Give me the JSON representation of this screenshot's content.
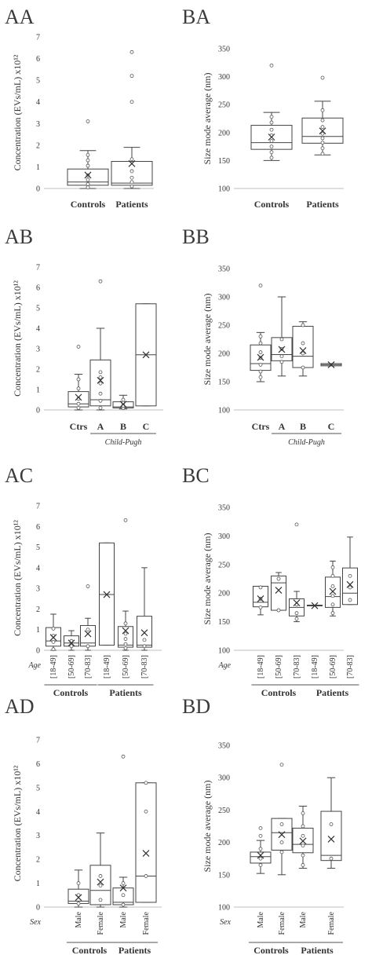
{
  "chart_data": [
    {
      "panel": "AA",
      "type": "box",
      "ylabel": "Concentration (EVs/mL) x10¹²",
      "ylim": [
        0,
        7
      ],
      "yticks": [
        0,
        1,
        2,
        3,
        4,
        5,
        6,
        7
      ],
      "categories": [
        "Controls",
        "Patients"
      ],
      "series": [
        {
          "category": "Controls",
          "min": 0,
          "q1": 0.15,
          "median": 0.3,
          "q3": 0.9,
          "max": 1.75,
          "mean": 0.62,
          "points": [
            0.05,
            0.2,
            0.4,
            0.6,
            1.05,
            1.3,
            1.55,
            3.1
          ]
        },
        {
          "category": "Patients",
          "min": 0,
          "q1": 0.15,
          "median": 0.25,
          "q3": 1.25,
          "max": 1.9,
          "mean": 1.15,
          "points": [
            0.1,
            0.3,
            0.5,
            0.8,
            1.35,
            4.0,
            5.2,
            6.3
          ]
        }
      ]
    },
    {
      "panel": "BA",
      "type": "box",
      "ylabel": "Size mode average (nm)",
      "ylim": [
        100,
        350
      ],
      "yticks": [
        100,
        150,
        200,
        250,
        300,
        350
      ],
      "categories": [
        "Controls",
        "Patients"
      ],
      "series": [
        {
          "category": "Controls",
          "min": 150,
          "q1": 170,
          "median": 182,
          "q3": 213,
          "max": 236,
          "mean": 192,
          "points": [
            155,
            165,
            175,
            185,
            195,
            205,
            218,
            228,
            320
          ]
        },
        {
          "category": "Patients",
          "min": 160,
          "q1": 181,
          "median": 193,
          "q3": 226,
          "max": 256,
          "mean": 203,
          "points": [
            162,
            172,
            182,
            190,
            198,
            210,
            222,
            240,
            298
          ]
        }
      ]
    },
    {
      "panel": "AB",
      "type": "box",
      "ylabel": "Concentration (EVs/mL) x10¹²",
      "ylim": [
        0,
        7
      ],
      "yticks": [
        0,
        1,
        2,
        3,
        4,
        5,
        6,
        7
      ],
      "categories": [
        "Ctrs",
        "A",
        "B",
        "C"
      ],
      "group_label": "Child-Pugh",
      "series": [
        {
          "category": "Ctrs",
          "min": 0,
          "q1": 0.15,
          "median": 0.3,
          "q3": 0.9,
          "max": 1.75,
          "mean": 0.62,
          "points": [
            0.1,
            0.3,
            0.55,
            1.05,
            1.5,
            3.1
          ]
        },
        {
          "category": "A",
          "min": 0,
          "q1": 0.2,
          "median": 0.5,
          "q3": 2.45,
          "max": 4.0,
          "mean": 1.45,
          "points": [
            0.1,
            0.45,
            0.8,
            1.3,
            1.6,
            1.85,
            6.3
          ]
        },
        {
          "category": "B",
          "min": 0.05,
          "q1": 0.1,
          "median": 0.15,
          "q3": 0.4,
          "max": 0.72,
          "mean": 0.28,
          "points": [
            0.1,
            0.2,
            0.35,
            0.5
          ]
        },
        {
          "category": "C",
          "min": 0.2,
          "q1": 0.2,
          "median": 2.7,
          "q3": 5.2,
          "max": 5.2,
          "mean": 2.7,
          "points": []
        }
      ]
    },
    {
      "panel": "BB",
      "type": "box",
      "ylabel": "Size mode average (nm)",
      "ylim": [
        100,
        350
      ],
      "yticks": [
        100,
        150,
        200,
        250,
        300,
        350
      ],
      "categories": [
        "Ctrs",
        "A",
        "B",
        "C"
      ],
      "group_label": "Child-Pugh",
      "series": [
        {
          "category": "Ctrs",
          "min": 150,
          "q1": 170,
          "median": 182,
          "q3": 215,
          "max": 237,
          "mean": 193,
          "points": [
            158,
            168,
            180,
            192,
            202,
            218,
            230,
            320
          ]
        },
        {
          "category": "A",
          "min": 160,
          "q1": 187,
          "median": 198,
          "q3": 228,
          "max": 300,
          "mean": 207,
          "points": [
            185,
            195,
            208,
            225
          ]
        },
        {
          "category": "B",
          "min": 160,
          "q1": 175,
          "median": 195,
          "q3": 248,
          "max": 256,
          "mean": 205,
          "points": [
            175,
            200,
            218,
            250
          ]
        },
        {
          "category": "C",
          "min": 178,
          "q1": 178,
          "median": 180,
          "q3": 182,
          "max": 182,
          "mean": 180,
          "points": []
        }
      ]
    },
    {
      "panel": "AC",
      "type": "box",
      "ylabel": "Concentration (EVs/mL) x10¹²",
      "ylim": [
        0,
        7
      ],
      "yticks": [
        0,
        1,
        2,
        3,
        4,
        5,
        6,
        7
      ],
      "row_label": "Age",
      "categories": [
        "[18-49]",
        "[50-69]",
        "[70-83]",
        "[18-49]",
        "[50-69]",
        "[70-83]"
      ],
      "groups": [
        "Controls",
        "Patients"
      ],
      "series": [
        {
          "category": "[18-49]",
          "group": "Controls",
          "min": 0,
          "q1": 0.2,
          "median": 0.45,
          "q3": 1.1,
          "max": 1.75,
          "mean": 0.62,
          "points": [
            0.05,
            0.4,
            0.7,
            1.05
          ]
        },
        {
          "category": "[50-69]",
          "group": "Controls",
          "min": 0,
          "q1": 0.2,
          "median": 0.35,
          "q3": 0.7,
          "max": 0.95,
          "mean": 0.35,
          "points": [
            0.2,
            0.45
          ]
        },
        {
          "category": "[70-83]",
          "group": "Controls",
          "min": 0,
          "q1": 0.2,
          "median": 0.35,
          "q3": 1.2,
          "max": 1.55,
          "mean": 0.8,
          "points": [
            0.2,
            1.0,
            3.1
          ]
        },
        {
          "category": "[18-49]",
          "group": "Patients",
          "min": 0.25,
          "q1": 0.25,
          "median": 2.7,
          "q3": 5.2,
          "max": 5.2,
          "mean": 2.7,
          "points": []
        },
        {
          "category": "[50-69]",
          "group": "Patients",
          "min": 0,
          "q1": 0.15,
          "median": 0.25,
          "q3": 1.15,
          "max": 1.9,
          "mean": 0.95,
          "points": [
            0.1,
            0.3,
            0.55,
            0.8,
            1.3,
            6.3
          ]
        },
        {
          "category": "[70-83]",
          "group": "Patients",
          "min": 0,
          "q1": 0.15,
          "median": 0.25,
          "q3": 1.65,
          "max": 4.0,
          "mean": 0.85,
          "points": [
            0.2,
            0.5
          ]
        }
      ]
    },
    {
      "panel": "BC",
      "type": "box",
      "ylabel": "Size mode average (nm)",
      "ylim": [
        100,
        350
      ],
      "yticks": [
        100,
        150,
        200,
        250,
        300,
        350
      ],
      "row_label": "Age",
      "categories": [
        "[18-49]",
        "[50-69]",
        "[70-83]",
        "[18-49]",
        "[50-69]",
        "[70-83]"
      ],
      "groups": [
        "Controls",
        "Patients"
      ],
      "series": [
        {
          "category": "[18-49]",
          "group": "Controls",
          "min": 162,
          "q1": 176,
          "median": 184,
          "q3": 212,
          "max": 212,
          "mean": 190,
          "points": [
            175,
            190,
            210
          ]
        },
        {
          "category": "[50-69]",
          "group": "Controls",
          "min": 170,
          "q1": 170,
          "median": 218,
          "q3": 230,
          "max": 236,
          "mean": 205,
          "points": [
            170,
            225
          ]
        },
        {
          "category": "[70-83]",
          "group": "Controls",
          "min": 150,
          "q1": 160,
          "median": 175,
          "q3": 190,
          "max": 203,
          "mean": 183,
          "points": [
            155,
            165,
            180,
            320
          ]
        },
        {
          "category": "[18-49]",
          "group": "Patients",
          "min": 178,
          "q1": 178,
          "median": 178,
          "q3": 179,
          "max": 179,
          "mean": 178,
          "points": []
        },
        {
          "category": "[50-69]",
          "group": "Patients",
          "min": 160,
          "q1": 175,
          "median": 194,
          "q3": 228,
          "max": 256,
          "mean": 203,
          "points": [
            165,
            180,
            195,
            212,
            230,
            245
          ]
        },
        {
          "category": "[70-83]",
          "group": "Patients",
          "min": 180,
          "q1": 180,
          "median": 200,
          "q3": 244,
          "max": 298,
          "mean": 215,
          "points": [
            188,
            210,
            230
          ]
        }
      ]
    },
    {
      "panel": "AD",
      "type": "box",
      "ylabel": "Concentration (EVs/mL) x10¹²",
      "ylim": [
        0,
        7
      ],
      "yticks": [
        0,
        1,
        2,
        3,
        4,
        5,
        6,
        7
      ],
      "row_label": "Sex",
      "categories": [
        "Male",
        "Female",
        "Male",
        "Female"
      ],
      "groups": [
        "Controls",
        "Patients"
      ],
      "series": [
        {
          "category": "Male",
          "group": "Controls",
          "min": 0,
          "q1": 0.15,
          "median": 0.25,
          "q3": 0.75,
          "max": 1.55,
          "mean": 0.4,
          "points": [
            0.15,
            0.5,
            1.0
          ]
        },
        {
          "category": "Female",
          "group": "Controls",
          "min": 0,
          "q1": 0.1,
          "median": 0.7,
          "q3": 1.75,
          "max": 3.1,
          "mean": 1.05,
          "points": [
            0.3,
            0.9,
            1.3
          ]
        },
        {
          "category": "Male",
          "group": "Patients",
          "min": 0,
          "q1": 0.1,
          "median": 0.2,
          "q3": 0.8,
          "max": 1.25,
          "mean": 0.8,
          "points": [
            0.1,
            0.5,
            1.0,
            6.3
          ]
        },
        {
          "category": "Female",
          "group": "Patients",
          "min": 0.2,
          "q1": 0.2,
          "median": 1.3,
          "q3": 5.2,
          "max": 5.2,
          "mean": 2.25,
          "points": [
            1.3,
            4.0,
            5.2
          ]
        }
      ]
    },
    {
      "panel": "BD",
      "type": "box",
      "ylabel": "Size mode average (nm)",
      "ylim": [
        100,
        350
      ],
      "yticks": [
        100,
        150,
        200,
        250,
        300,
        350
      ],
      "row_label": "Sex",
      "categories": [
        "Male",
        "Female",
        "Male",
        "Female"
      ],
      "groups": [
        "Controls",
        "Patients"
      ],
      "series": [
        {
          "category": "Male",
          "group": "Controls",
          "min": 152,
          "q1": 168,
          "median": 178,
          "q3": 185,
          "max": 203,
          "mean": 180,
          "points": [
            165,
            175,
            190,
            210,
            222
          ]
        },
        {
          "category": "Female",
          "group": "Controls",
          "min": 150,
          "q1": 188,
          "median": 215,
          "q3": 237,
          "max": 237,
          "mean": 212,
          "points": [
            185,
            200,
            228,
            320
          ]
        },
        {
          "category": "Male",
          "group": "Patients",
          "min": 160,
          "q1": 184,
          "median": 197,
          "q3": 222,
          "max": 256,
          "mean": 202,
          "points": [
            165,
            180,
            195,
            210,
            225,
            245
          ]
        },
        {
          "category": "Female",
          "group": "Patients",
          "min": 160,
          "q1": 172,
          "median": 180,
          "q3": 248,
          "max": 300,
          "mean": 205,
          "points": [
            175,
            228
          ]
        }
      ]
    }
  ]
}
